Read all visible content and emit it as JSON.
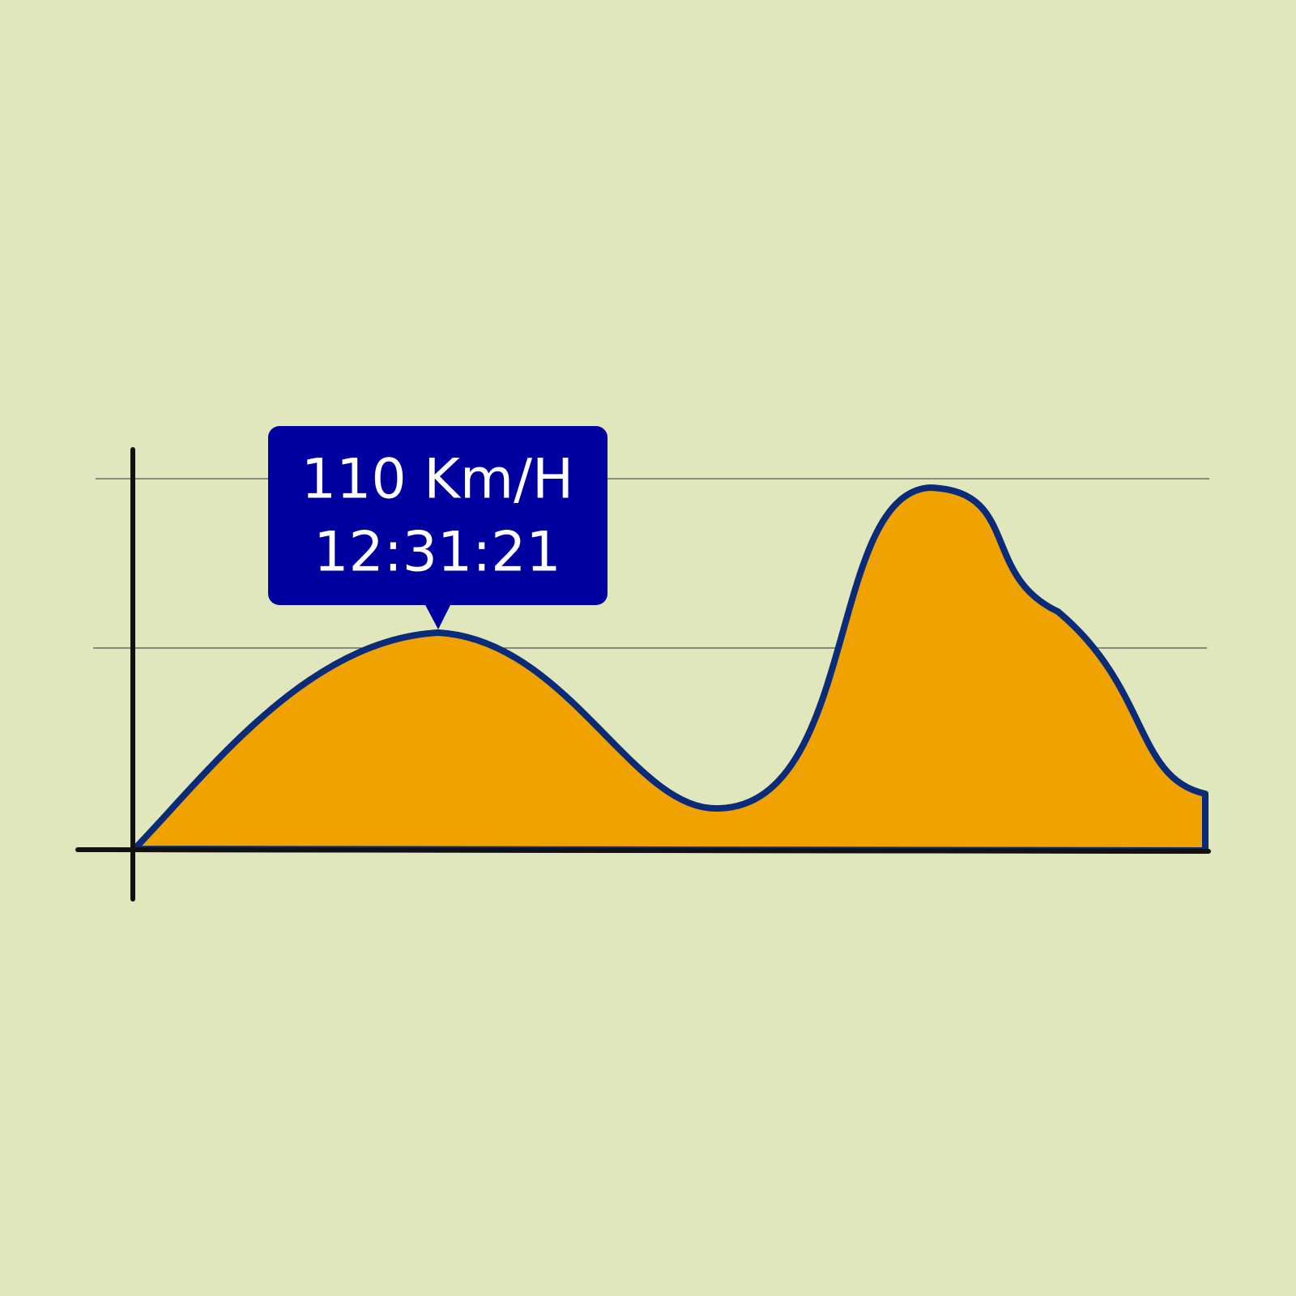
{
  "tooltip": {
    "value": "110 Km/H",
    "time": "12:31:21"
  }
}
